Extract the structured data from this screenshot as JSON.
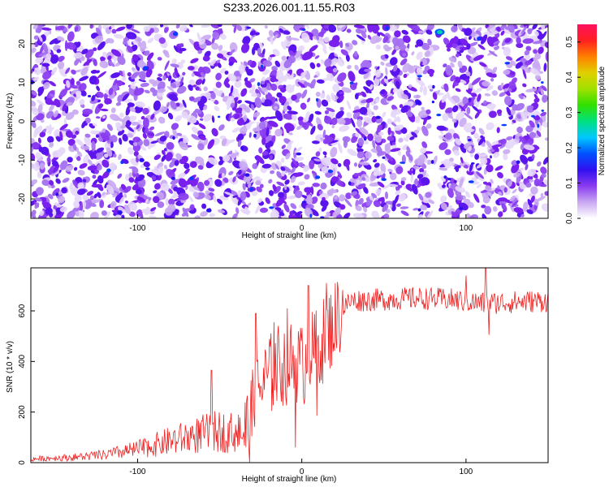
{
  "title": "S233.2026.001.11.55.R03",
  "chart_data": [
    {
      "type": "heatmap",
      "xlabel": "Height of straight line (km)",
      "ylabel": "Frequency (Hz)",
      "xlim": [
        -165,
        150
      ],
      "ylim": [
        -25,
        25
      ],
      "x_ticks": [
        -100,
        0,
        100
      ],
      "y_ticks": [
        -20,
        -10,
        0,
        10,
        20
      ],
      "colorbar": {
        "label": "Normalized spectral amplitude",
        "range": [
          0.0,
          0.55
        ],
        "ticks": [
          "0.0",
          "0.1",
          "0.2",
          "0.3",
          "0.4",
          "0.5"
        ],
        "colors": [
          "#ffffff",
          "#c9a8f2",
          "#8a3cf0",
          "#3010f0",
          "#0050ff",
          "#00c8ff",
          "#00e080",
          "#30e000",
          "#a0e000",
          "#e0d000",
          "#ff8000",
          "#ff2020",
          "#ff1060"
        ]
      },
      "description_values": {
        "min": 0.0,
        "typical_max": 0.15,
        "hotspot": {
          "x": 84,
          "y": 23,
          "value": 0.3
        }
      }
    },
    {
      "type": "line",
      "xlabel": "Height of straight line (km)",
      "ylabel": "SNR (10 * v/v)",
      "xlim": [
        -165,
        150
      ],
      "ylim": [
        0,
        770
      ],
      "x_ticks": [
        -100,
        0,
        100
      ],
      "y_ticks": [
        0,
        200,
        400,
        600
      ],
      "color": "#ee2222",
      "envelope": {
        "x": [
          -165,
          -140,
          -120,
          -100,
          -80,
          -60,
          -50,
          -40,
          -33,
          -30,
          -25,
          -20,
          -15,
          -10,
          -5,
          0,
          5,
          10,
          15,
          20,
          25,
          30,
          50,
          70,
          90,
          110,
          130,
          150
        ],
        "y": [
          15,
          22,
          32,
          55,
          90,
          120,
          130,
          125,
          130,
          200,
          300,
          340,
          380,
          390,
          400,
          380,
          420,
          460,
          500,
          560,
          610,
          640,
          645,
          650,
          645,
          630,
          635,
          640
        ]
      },
      "spikes": [
        {
          "x": -55,
          "y": 365
        },
        {
          "x": -28,
          "y": 590
        },
        {
          "x": -17,
          "y": 555
        },
        {
          "x": -9,
          "y": 610
        },
        {
          "x": -4,
          "y": 60
        },
        {
          "x": 4,
          "y": 700
        },
        {
          "x": 9,
          "y": 185
        },
        {
          "x": 15,
          "y": 710
        },
        {
          "x": 100,
          "y": 740
        },
        {
          "x": 112,
          "y": 770
        },
        {
          "x": 114,
          "y": 505
        }
      ]
    }
  ]
}
